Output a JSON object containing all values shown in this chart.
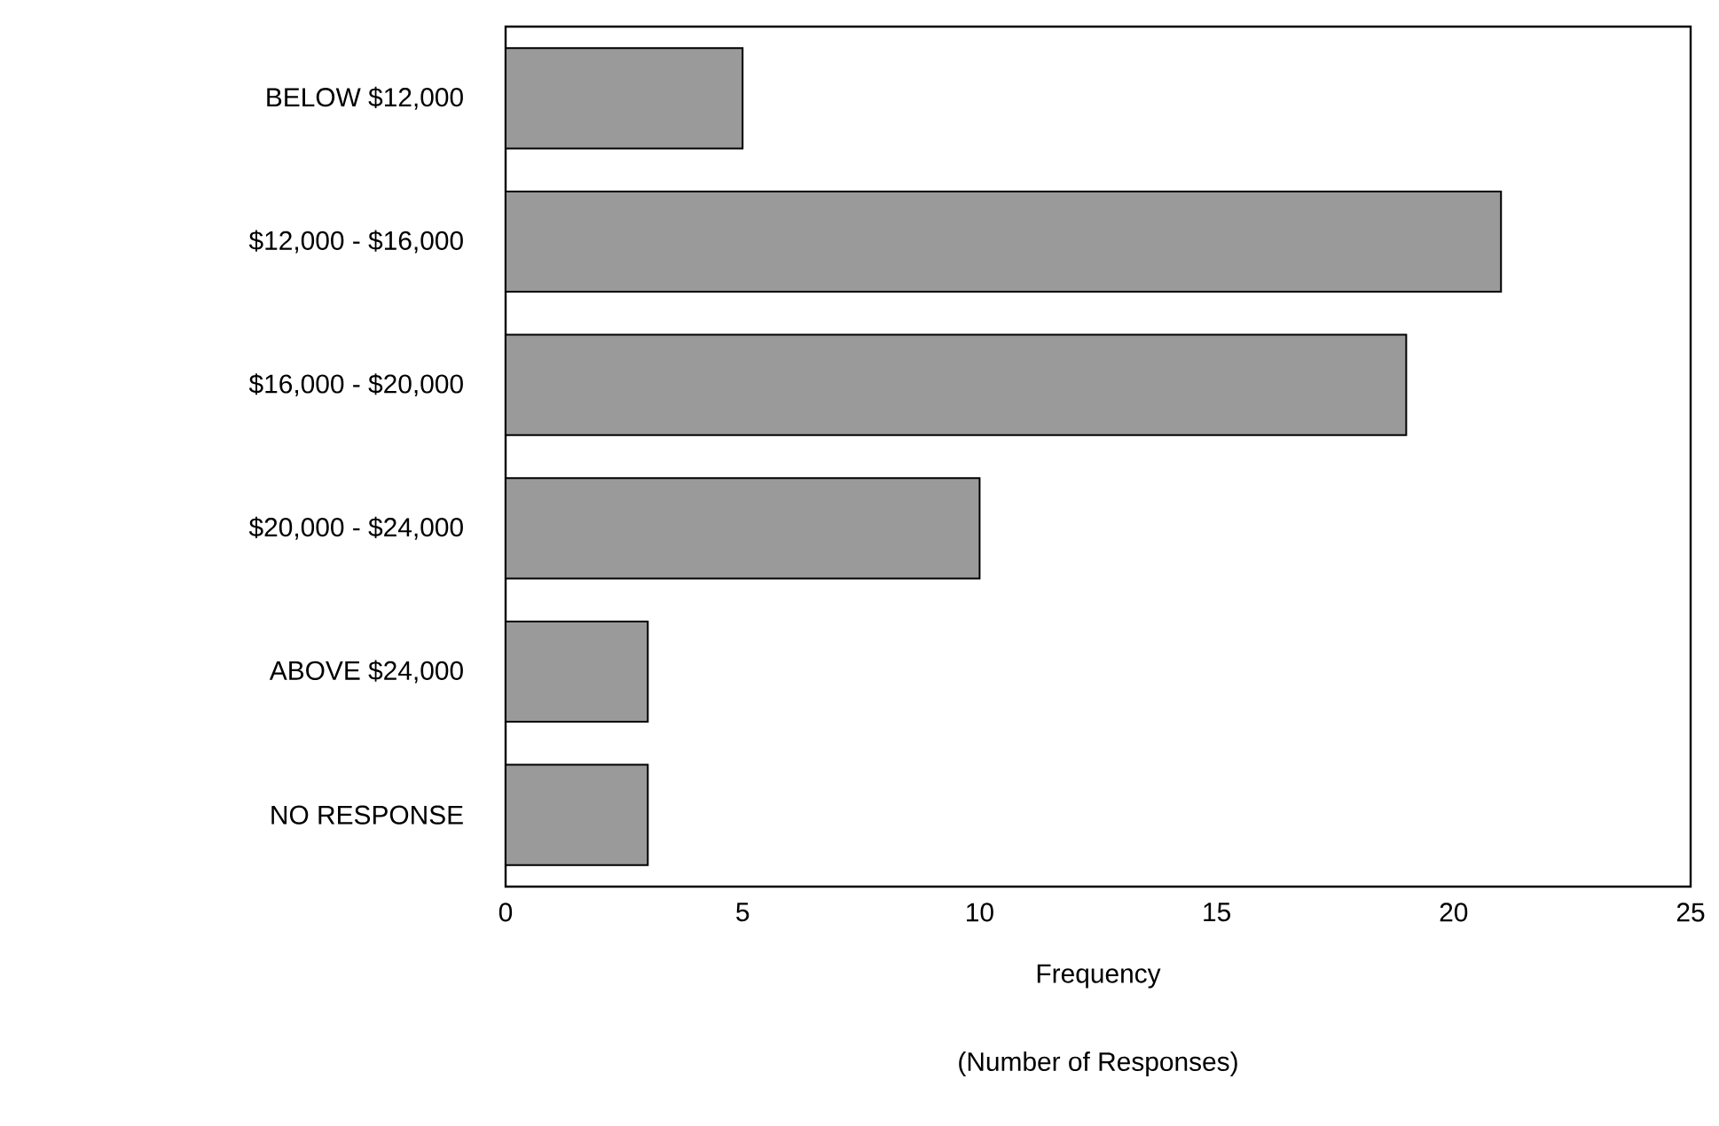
{
  "chart_data": {
    "type": "bar",
    "orientation": "horizontal",
    "categories": [
      "BELOW $12,000",
      "$12,000 - $16,000",
      "$16,000 - $20,000",
      "$20,000 - $24,000",
      "ABOVE $24,000",
      "NO RESPONSE"
    ],
    "values": [
      5,
      21,
      19,
      10,
      3,
      3
    ],
    "color": "#9a9a9a",
    "xlim": [
      0,
      25
    ],
    "xticks": [
      0,
      5,
      10,
      15,
      20,
      25
    ],
    "xlabel": "Frequency",
    "annotations": [
      "(Number of Responses)"
    ]
  }
}
